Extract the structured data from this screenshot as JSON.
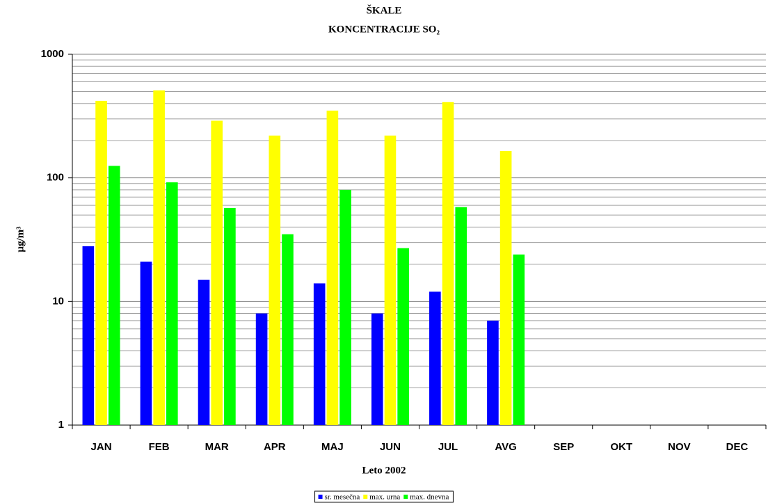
{
  "chart_data": {
    "type": "bar",
    "title": [
      "ŠKALE",
      "KONCENTRACIJE SO₂"
    ],
    "xlabel": "Leto 2002",
    "ylabel": "µg/m³",
    "categories": [
      "JAN",
      "FEB",
      "MAR",
      "APR",
      "MAJ",
      "JUN",
      "JUL",
      "AVG",
      "SEP",
      "OKT",
      "NOV",
      "DEC"
    ],
    "series": [
      {
        "name": "sr. mesečna",
        "color": "#0000ff",
        "values": [
          28,
          21,
          15,
          8,
          14,
          8,
          12,
          7,
          null,
          null,
          null,
          null
        ]
      },
      {
        "name": "max. urna",
        "color": "#ffff00",
        "values": [
          420,
          510,
          290,
          220,
          350,
          220,
          410,
          165,
          null,
          null,
          null,
          null
        ]
      },
      {
        "name": "max. dnevna",
        "color": "#00ff00",
        "values": [
          125,
          92,
          57,
          35,
          80,
          27,
          58,
          24,
          null,
          null,
          null,
          null
        ]
      }
    ],
    "ylim": [
      1,
      1000
    ],
    "yticks": [
      1,
      10,
      100,
      1000
    ],
    "log_scale": true,
    "grid": true,
    "minor_grid": true,
    "legend": "bottom"
  }
}
